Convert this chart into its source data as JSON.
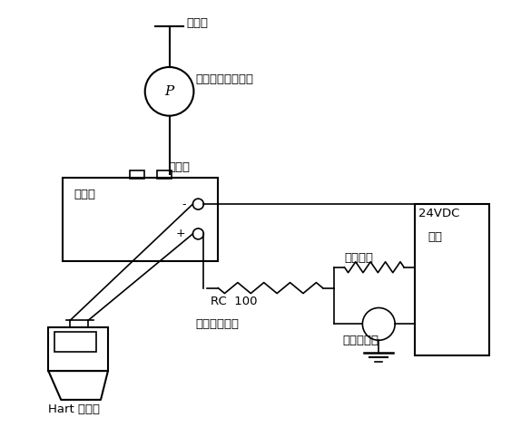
{
  "bg_color": "#ffffff",
  "text_color": "#000000",
  "line_color": "#000000",
  "labels": {
    "pressure_source": "压力源",
    "digital_pressure": "高精度数字压力表",
    "high_pressure_side": "高压侧",
    "transmitter": "变送器",
    "load_resistor": "负载电阻",
    "power_24vdc": "24VDC",
    "power_source": "电源",
    "rc100": "RC  100",
    "load_adj_resistor": "负载调节电阻",
    "digital_voltmeter": "数字电压表",
    "hart_communicator": "Hart 通讯器",
    "plus": "+",
    "minus": "-",
    "P": "P"
  }
}
